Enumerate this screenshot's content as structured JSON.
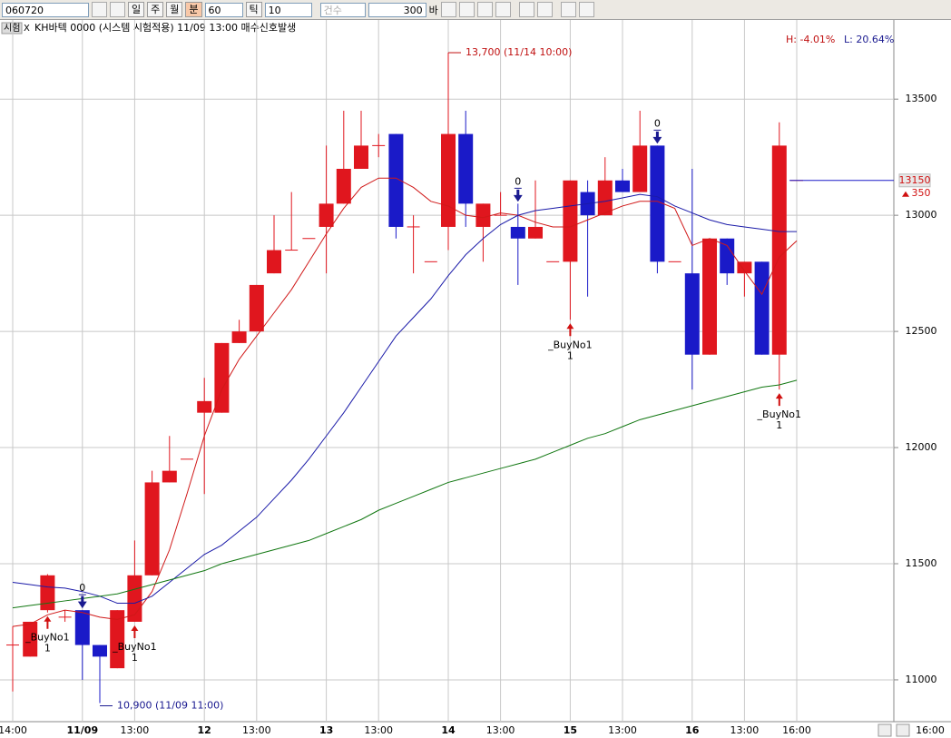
{
  "toolbar": {
    "code": "060720",
    "periods": [
      "일",
      "주",
      "월",
      "분"
    ],
    "minutes": "60",
    "tick_label": "틱",
    "tick": "10",
    "count_label": "건수",
    "count": 300,
    "bar_label": "바"
  },
  "info": {
    "tag": "시험",
    "close": "X",
    "text": "KH바텍 0000 (시스템 시험적용) 11/09 13:00 매수신호발생",
    "high_pct": "H: -4.01%",
    "low_pct": "L: 20.64%"
  },
  "chart_data": {
    "type": "candlestick",
    "categories": [
      "14:00",
      null,
      null,
      null,
      "11/09",
      null,
      null,
      "13:00",
      null,
      null,
      null,
      "12",
      null,
      null,
      "13:00",
      null,
      null,
      null,
      "13",
      null,
      null,
      "13:00",
      null,
      null,
      null,
      "14",
      null,
      null,
      "13:00",
      null,
      null,
      null,
      "15",
      null,
      null,
      "13:00",
      null,
      null,
      null,
      "16",
      null,
      null,
      "13:00",
      null,
      null,
      "16:00"
    ],
    "ohlc": {
      "open": [
        11150,
        11100,
        11300,
        11270,
        11300,
        11150,
        11050,
        11250,
        11450,
        11850,
        11950,
        12150,
        12150,
        12450,
        12500,
        12750,
        12850,
        12900,
        12950,
        13050,
        13200,
        13300,
        13350,
        12950,
        12800,
        12950,
        13350,
        12950,
        13000,
        12950,
        12900,
        12800,
        12800,
        13100,
        13000,
        13150,
        13100,
        13300,
        12800,
        12750,
        12400,
        12900,
        12750,
        12800,
        12400,
        13150
      ],
      "high": [
        11230,
        11250,
        11455,
        11300,
        11300,
        11150,
        11300,
        11600,
        11900,
        12050,
        11950,
        12300,
        12450,
        12550,
        12700,
        13000,
        13100,
        12900,
        13300,
        13450,
        13450,
        13350,
        13350,
        13000,
        12800,
        13700,
        13450,
        13050,
        13100,
        13050,
        13150,
        12800,
        13150,
        13150,
        13250,
        13200,
        13450,
        13300,
        12800,
        13200,
        12900,
        12900,
        12800,
        12800,
        13400,
        13150
      ],
      "low": [
        10950,
        11100,
        11290,
        11250,
        11000,
        10900,
        11050,
        11250,
        11450,
        11850,
        11950,
        11800,
        12150,
        12450,
        12500,
        12750,
        12850,
        12900,
        12750,
        13050,
        13200,
        13250,
        12900,
        12750,
        12800,
        12850,
        12950,
        12800,
        13000,
        12700,
        12900,
        12800,
        12550,
        12650,
        13000,
        13100,
        13100,
        12750,
        12800,
        12250,
        12400,
        12700,
        12650,
        12400,
        12250,
        13150
      ],
      "close": [
        11150,
        11250,
        11450,
        11270,
        11150,
        11100,
        11300,
        11450,
        11850,
        11900,
        11950,
        12200,
        12450,
        12500,
        12700,
        12850,
        12850,
        12900,
        13050,
        13200,
        13300,
        13300,
        12950,
        12950,
        12800,
        13350,
        13050,
        13050,
        13000,
        12900,
        12950,
        12800,
        13150,
        13000,
        13150,
        13100,
        13300,
        12800,
        12800,
        12400,
        12900,
        12750,
        12800,
        12400,
        13300,
        13150
      ]
    },
    "up_color": "#e0161e",
    "down_color": "#1a1ac8",
    "moving_averages": [
      {
        "color": "#d01818",
        "values": [
          11230,
          11240,
          11280,
          11300,
          11290,
          11270,
          11260,
          11280,
          11380,
          11560,
          11800,
          12050,
          12250,
          12380,
          12480,
          12580,
          12680,
          12800,
          12920,
          13030,
          13120,
          13160,
          13160,
          13120,
          13060,
          13040,
          13000,
          12990,
          13010,
          13000,
          12970,
          12950,
          12950,
          12980,
          13010,
          13040,
          13060,
          13060,
          13030,
          12870,
          12900,
          12870,
          12760,
          12660,
          12820,
          12890
        ]
      },
      {
        "color": "#1a1aa8",
        "values": [
          11420,
          11410,
          11400,
          11395,
          11380,
          11360,
          11330,
          11330,
          11360,
          11420,
          11480,
          11540,
          11580,
          11640,
          11700,
          11780,
          11860,
          11950,
          12050,
          12150,
          12260,
          12370,
          12480,
          12560,
          12640,
          12740,
          12830,
          12900,
          12960,
          13000,
          13020,
          13030,
          13040,
          13050,
          13060,
          13075,
          13090,
          13080,
          13040,
          13010,
          12980,
          12960,
          12950,
          12940,
          12930,
          12930
        ]
      },
      {
        "color": "#117711",
        "values": [
          11310,
          11320,
          11330,
          11340,
          11350,
          11360,
          11370,
          11390,
          11410,
          11430,
          11450,
          11470,
          11500,
          11520,
          11540,
          11560,
          11580,
          11600,
          11630,
          11660,
          11690,
          11730,
          11760,
          11790,
          11820,
          11850,
          11870,
          11890,
          11910,
          11930,
          11950,
          11980,
          12010,
          12040,
          12060,
          12090,
          12120,
          12140,
          12160,
          12180,
          12200,
          12220,
          12240,
          12260,
          12270,
          12290
        ]
      }
    ],
    "buy_signals": [
      {
        "index": 2,
        "label": "_BuyNo1",
        "count": 1
      },
      {
        "index": 7,
        "label": "_BuyNo1",
        "count": 1
      },
      {
        "index": 32,
        "label": "_BuyNo1",
        "count": 1
      },
      {
        "index": 44,
        "label": "_BuyNo1",
        "count": 1
      }
    ],
    "sell_signals": [
      {
        "index": 4,
        "label": "0"
      },
      {
        "index": 29,
        "label": "0"
      },
      {
        "index": 37,
        "label": "0"
      }
    ],
    "high_note": {
      "index": 25,
      "label": "13,700 (11/14 10:00)"
    },
    "low_note": {
      "index": 5,
      "label": "10,900 (11/09 11:00)"
    },
    "last_price": 13150,
    "change": 350,
    "right_time": "16:00",
    "ylim": [
      10820,
      13790
    ],
    "yticks": [
      11000,
      11500,
      12000,
      12500,
      13000,
      13500
    ]
  }
}
